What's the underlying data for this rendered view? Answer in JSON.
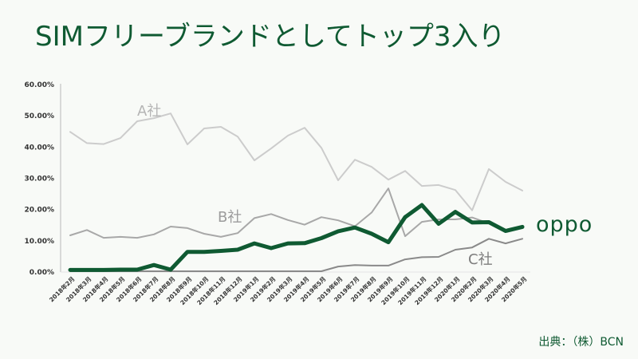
{
  "slide": {
    "title": "SIMフリーブランドとしてトップ3入り",
    "brand_logo": "oppo",
    "source": "出典：（株）BCN"
  },
  "colors": {
    "title": "#0f5a32",
    "oppo": "#0f5a32",
    "a_company": "#cccccc",
    "b_company": "#a8a8a8",
    "c_company": "#8a8a8a",
    "axis": "#c8c8c8"
  },
  "chart_data": {
    "type": "line",
    "title": "SIMフリーブランドとしてトップ3入り",
    "xlabel": "",
    "ylabel": "",
    "ylim": [
      0,
      60
    ],
    "y_ticks": [
      "0.00%",
      "10.00%",
      "20.00%",
      "30.00%",
      "40.00%",
      "50.00%",
      "60.00%"
    ],
    "grid": false,
    "legend_position": "inline labels",
    "categories": [
      "2018年2月",
      "2018年3月",
      "2018年4月",
      "2018年5月",
      "2018年6月",
      "2018年7月",
      "2018年8月",
      "2018年9月",
      "2018年10月",
      "2018年11月",
      "2018年12月",
      "2019年1月",
      "2019年2月",
      "2019年3月",
      "2019年4月",
      "2019年5月",
      "2019年6月",
      "2019年7月",
      "2019年8月",
      "2019年9月",
      "2019年10月",
      "2019年11月",
      "2019年12月",
      "2020年1月",
      "2020年2月",
      "2020年3月",
      "2020年4月",
      "2020年5月"
    ],
    "series": [
      {
        "name": "A社",
        "values": [
          44.6,
          41.0,
          40.7,
          42.6,
          48.0,
          49.0,
          50.5,
          40.6,
          45.7,
          46.2,
          43.1,
          35.5,
          39.3,
          43.4,
          45.9,
          39.5,
          29.1,
          35.7,
          33.4,
          29.3,
          32.1,
          27.3,
          27.6,
          26.0,
          19.5,
          32.7,
          28.6,
          25.8
        ]
      },
      {
        "name": "B社",
        "values": [
          11.5,
          13.2,
          10.7,
          11.0,
          10.7,
          11.8,
          14.3,
          13.8,
          12.0,
          11.0,
          12.2,
          17.0,
          18.3,
          16.4,
          14.9,
          17.3,
          16.3,
          14.4,
          18.8,
          26.5,
          11.2,
          15.8,
          16.6,
          16.6,
          17.2,
          15.3,
          13.0,
          14.2
        ]
      },
      {
        "name": "C社",
        "values": [
          0,
          0,
          0,
          0,
          0,
          0,
          0,
          0,
          0,
          0,
          0,
          0,
          0,
          0,
          0,
          0,
          1.5,
          2.0,
          1.8,
          1.8,
          3.8,
          4.5,
          4.6,
          6.9,
          7.6,
          10.4,
          8.9,
          10.4
        ]
      },
      {
        "name": "OPPO",
        "values": [
          0.4,
          0.4,
          0.4,
          0.5,
          0.5,
          2.0,
          0.5,
          6.2,
          6.2,
          6.5,
          6.9,
          8.9,
          7.4,
          8.9,
          9.0,
          10.6,
          12.8,
          14.0,
          12.0,
          9.3,
          17.3,
          21.2,
          15.2,
          19.0,
          15.6,
          15.7,
          12.9,
          14.2
        ]
      }
    ],
    "annotations": [
      {
        "text": "A社",
        "series": "A社"
      },
      {
        "text": "B社",
        "series": "B社"
      },
      {
        "text": "C社",
        "series": "C社"
      },
      {
        "text": "oppo",
        "series": "OPPO"
      }
    ]
  }
}
